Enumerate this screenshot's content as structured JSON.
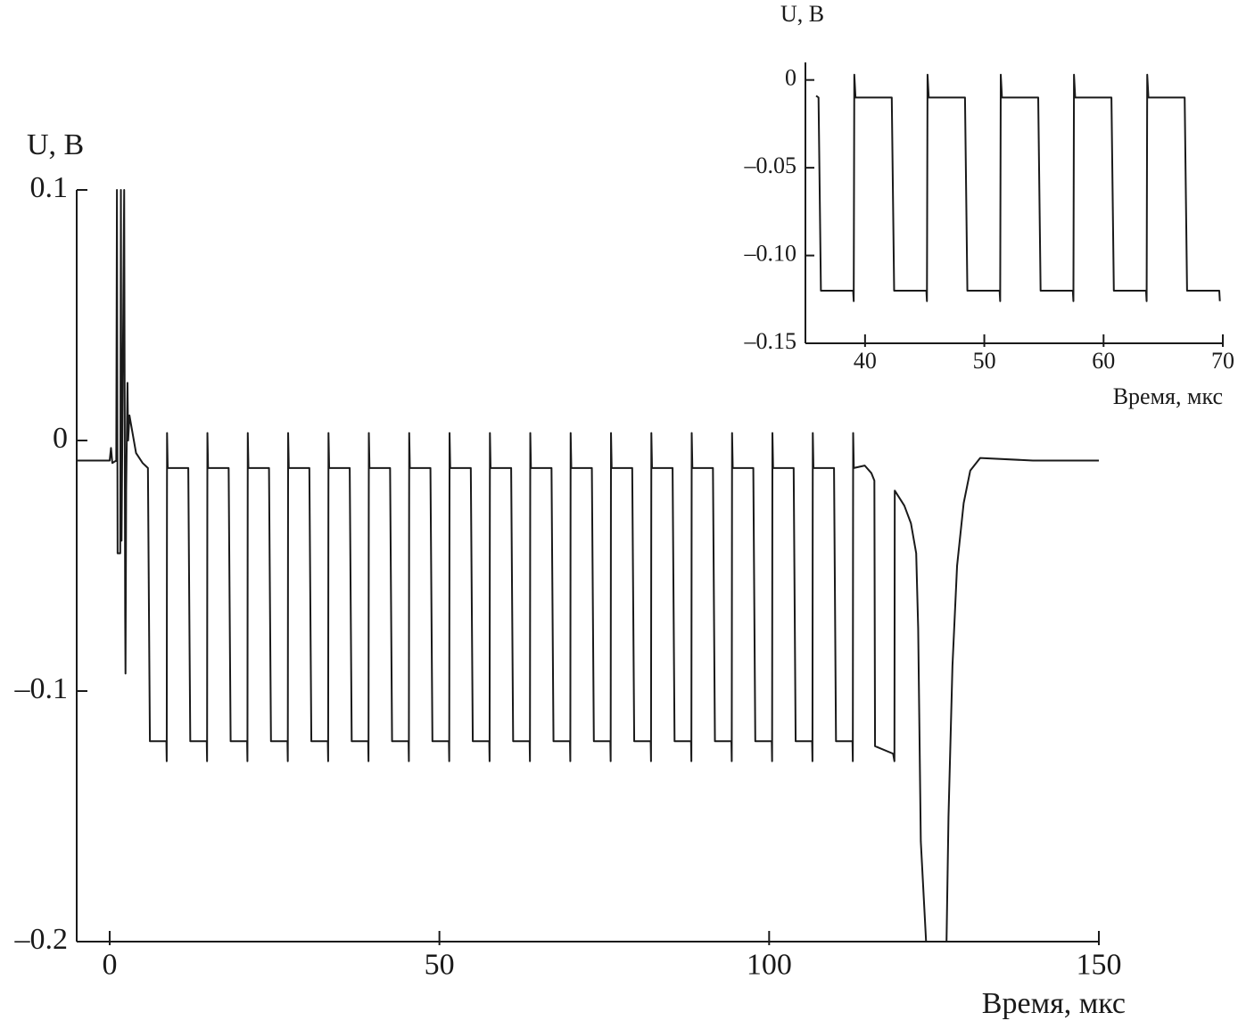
{
  "chart_data": [
    {
      "type": "line",
      "x_label": "Время, мкс",
      "y_label": "U, В",
      "xlim": [
        -5,
        150
      ],
      "ylim": [
        -0.2,
        0.1
      ],
      "xticks": [
        0,
        50,
        100,
        150
      ],
      "yticks": [
        {
          "value": -0.2,
          "label": "–0.2"
        },
        {
          "value": -0.1,
          "label": "–0.1"
        },
        0,
        0.1
      ],
      "x": [
        -5,
        0,
        0.2,
        0.4,
        1.0,
        1.1,
        1.2,
        1.6,
        1.7,
        1.8,
        2.2,
        2.35,
        2.4,
        2.5,
        2.7,
        2.8,
        3.0,
        4.0,
        5.0,
        5.8,
        6.1,
        8.6,
        8.65,
        8.7,
        8.8,
        11.92,
        12.22,
        14.72,
        14.77,
        14.82,
        14.92,
        18.04,
        18.34,
        20.84,
        20.89,
        20.94,
        21.04,
        24.16,
        24.46,
        26.96,
        27.01,
        27.06,
        27.16,
        30.28,
        30.58,
        33.08,
        33.13,
        33.18,
        33.28,
        36.4,
        36.7,
        39.2,
        39.25,
        39.3,
        39.4,
        42.52,
        42.82,
        45.32,
        45.37,
        45.42,
        45.52,
        48.64,
        48.94,
        51.44,
        51.49,
        51.54,
        51.64,
        54.76,
        55.06,
        57.56,
        57.61,
        57.66,
        57.76,
        60.88,
        61.18,
        63.68,
        63.73,
        63.78,
        63.88,
        67,
        67.3,
        69.8,
        69.85,
        69.9,
        70,
        73.12,
        73.42,
        75.92,
        75.97,
        76.02,
        76.12,
        79.24,
        79.54,
        82.04,
        82.09,
        82.14,
        82.24,
        85.36,
        85.66,
        88.16,
        88.21,
        88.26,
        88.36,
        91.48,
        91.78,
        94.28,
        94.33,
        94.38,
        94.48,
        97.6,
        97.9,
        100.4,
        100.45,
        100.5,
        100.6,
        103.72,
        104.02,
        106.52,
        106.57,
        106.62,
        106.72,
        109.84,
        110.14,
        112.64,
        112.69,
        112.74,
        112.84,
        114.5,
        115.5,
        115.96,
        116.06,
        118.8,
        119.0,
        119.05,
        120.5,
        121.5,
        122.3,
        122.6,
        123.0,
        123.8,
        126.9,
        127.2,
        127.8,
        128.5,
        129.5,
        130.5,
        132,
        140,
        150
      ],
      "series": [
        {
          "color": "#1a1a1a",
          "values": [
            -0.008,
            -0.008,
            -0.003,
            -0.009,
            -0.008,
            0.1,
            -0.045,
            -0.045,
            0.1,
            -0.04,
            0.1,
            -0.07,
            -0.093,
            -0.02,
            0.023,
            0.0,
            0.01,
            -0.005,
            -0.009,
            -0.011,
            -0.12,
            -0.12,
            -0.128,
            0.003,
            -0.011,
            -0.011,
            -0.12,
            -0.12,
            -0.128,
            0.003,
            -0.011,
            -0.011,
            -0.12,
            -0.12,
            -0.128,
            0.003,
            -0.011,
            -0.011,
            -0.12,
            -0.12,
            -0.128,
            0.003,
            -0.011,
            -0.011,
            -0.12,
            -0.12,
            -0.128,
            0.003,
            -0.011,
            -0.011,
            -0.12,
            -0.12,
            -0.128,
            0.003,
            -0.011,
            -0.011,
            -0.12,
            -0.12,
            -0.128,
            0.003,
            -0.011,
            -0.011,
            -0.12,
            -0.12,
            -0.128,
            0.003,
            -0.011,
            -0.011,
            -0.12,
            -0.12,
            -0.128,
            0.003,
            -0.011,
            -0.011,
            -0.12,
            -0.12,
            -0.128,
            0.003,
            -0.011,
            -0.011,
            -0.12,
            -0.12,
            -0.128,
            0.003,
            -0.011,
            -0.011,
            -0.12,
            -0.12,
            -0.128,
            0.003,
            -0.011,
            -0.011,
            -0.12,
            -0.12,
            -0.128,
            0.003,
            -0.011,
            -0.011,
            -0.12,
            -0.12,
            -0.128,
            0.003,
            -0.011,
            -0.011,
            -0.12,
            -0.12,
            -0.128,
            0.003,
            -0.011,
            -0.011,
            -0.12,
            -0.12,
            -0.128,
            0.003,
            -0.011,
            -0.011,
            -0.12,
            -0.12,
            -0.128,
            0.003,
            -0.011,
            -0.011,
            -0.12,
            -0.12,
            -0.128,
            0.003,
            -0.011,
            -0.01,
            -0.013,
            -0.016,
            -0.122,
            -0.125,
            -0.128,
            -0.02,
            -0.026,
            -0.033,
            -0.045,
            -0.075,
            -0.16,
            -0.2,
            -0.2,
            -0.15,
            -0.09,
            -0.05,
            -0.025,
            -0.012,
            -0.007,
            -0.008,
            -0.008
          ]
        }
      ]
    },
    {
      "type": "line",
      "x_label": "Время, мкс",
      "y_label": "U, В",
      "xlim": [
        35,
        70
      ],
      "ylim": [
        -0.15,
        0.01
      ],
      "xticks": [
        40,
        50,
        60,
        70
      ],
      "yticks": [
        {
          "value": -0.15,
          "label": "–0.15"
        },
        {
          "value": -0.1,
          "label": "–0.10"
        },
        {
          "value": -0.05,
          "label": "–0.05"
        },
        0
      ],
      "x": [
        35.9,
        36.1,
        36.3,
        39.0,
        39.05,
        39.1,
        39.2,
        42.24,
        42.44,
        45.14,
        45.19,
        45.24,
        45.34,
        48.38,
        48.58,
        51.28,
        51.33,
        51.38,
        51.48,
        54.52,
        54.72,
        57.42,
        57.47,
        57.52,
        57.62,
        60.66,
        60.86,
        63.56,
        63.61,
        63.66,
        63.76,
        66.8,
        67.0,
        69.7,
        69.75
      ],
      "series": [
        {
          "color": "#1a1a1a",
          "values": [
            -0.009,
            -0.01,
            -0.12,
            -0.12,
            -0.126,
            0.003,
            -0.01,
            -0.01,
            -0.12,
            -0.12,
            -0.126,
            0.003,
            -0.01,
            -0.01,
            -0.12,
            -0.12,
            -0.126,
            0.003,
            -0.01,
            -0.01,
            -0.12,
            -0.12,
            -0.126,
            0.003,
            -0.01,
            -0.01,
            -0.12,
            -0.12,
            -0.126,
            0.003,
            -0.01,
            -0.01,
            -0.12,
            -0.12,
            -0.126
          ]
        }
      ]
    }
  ]
}
